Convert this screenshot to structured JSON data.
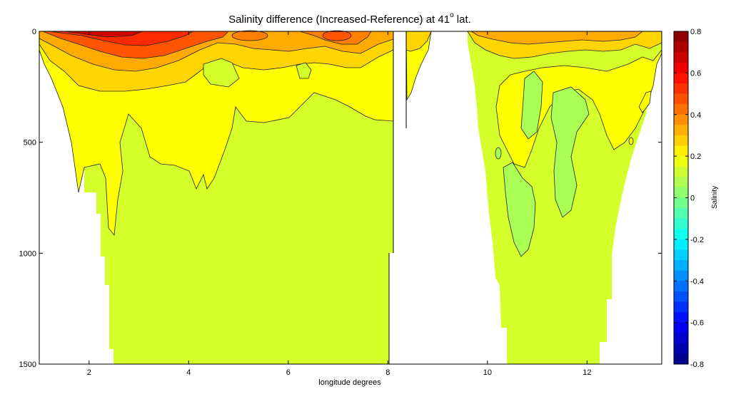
{
  "chart_data": {
    "type": "heatmap",
    "title_main": "Salinity difference (Increased-Reference) at 41",
    "title_sup": "o",
    "title_end": " lat.",
    "xlabel": "longitude degrees",
    "colorbar_label": "Salinity",
    "xlim": [
      1.0,
      13.5
    ],
    "ylim": [
      0,
      1500
    ],
    "y_reversed": true,
    "x_ticks": [
      "2",
      "4",
      "6",
      "8",
      "10",
      "12"
    ],
    "x_tick_values": [
      2,
      4,
      6,
      8,
      10,
      12
    ],
    "y_ticks": [
      "0",
      "500",
      "1000",
      "1500"
    ],
    "y_tick_values": [
      0,
      500,
      1000,
      1500
    ],
    "clim": [
      -0.8,
      0.8
    ],
    "colorbar_ticks": [
      "0.8",
      "0.6",
      "0.4",
      "0.2",
      "0",
      "-0.2",
      "-0.4",
      "-0.6",
      "-0.8"
    ],
    "colorbar_tick_values": [
      0.8,
      0.6,
      0.4,
      0.2,
      0,
      -0.2,
      -0.4,
      -0.6,
      -0.8
    ],
    "colormap": "jet",
    "contour_levels_step": 0.05,
    "regions": [
      {
        "name": "deep-background",
        "value": 0.1,
        "color": "#d4ff2a"
      },
      {
        "name": "intermediate-layer",
        "value": 0.15,
        "color": "#ffff00"
      },
      {
        "name": "upper-layer",
        "value": 0.25,
        "color": "#ffd500"
      },
      {
        "name": "surface-layer",
        "value": 0.35,
        "color": "#ffaa00"
      },
      {
        "name": "surface-max",
        "value": 0.7,
        "color": "#ff2a00"
      },
      {
        "name": "patch-negative",
        "value": 0.05,
        "color": "#aaff55"
      }
    ]
  }
}
